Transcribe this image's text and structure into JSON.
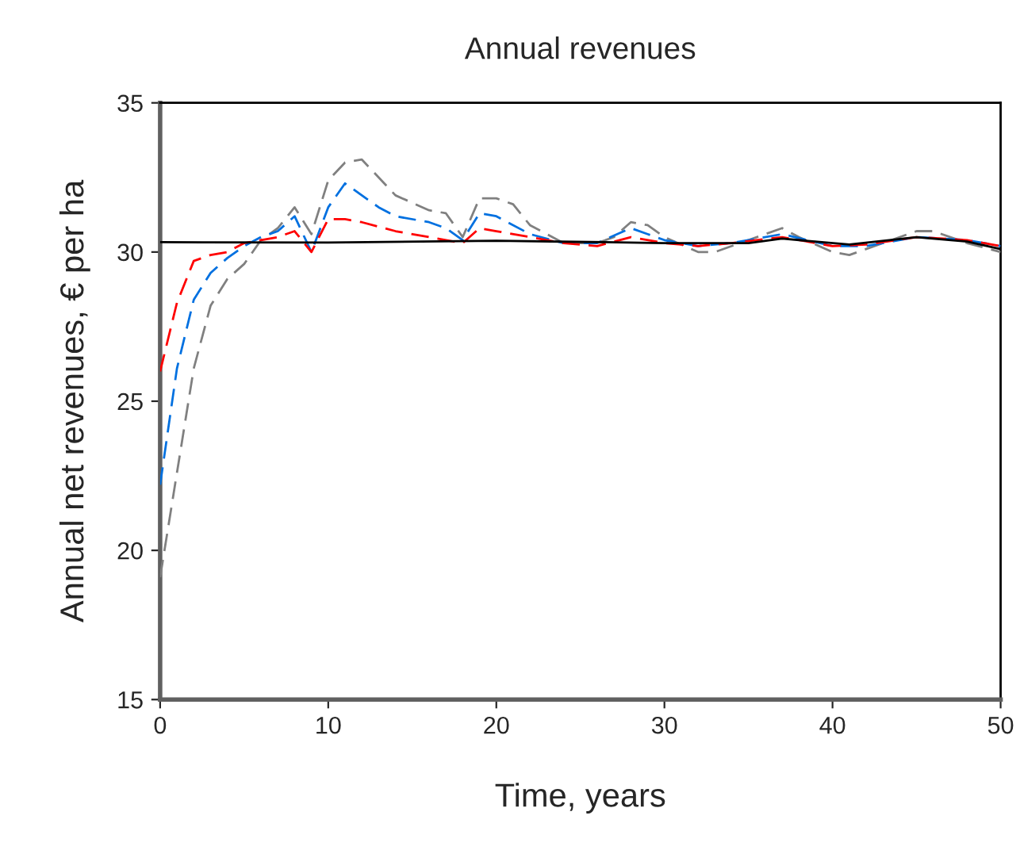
{
  "chart_data": {
    "type": "line",
    "title": "Annual revenues",
    "xlabel": "Time, years",
    "ylabel": "Annual net revenues, € per ha",
    "xlim": [
      0,
      50
    ],
    "xticks": [
      0,
      10,
      20,
      30,
      40,
      50
    ],
    "ylim": [
      15,
      35
    ],
    "yticks": [
      15,
      20,
      25,
      30,
      35
    ],
    "grid": false,
    "marker": "none",
    "series": [
      {
        "color": "#000000",
        "line_style": "solid",
        "x": [
          0,
          10,
          20,
          30,
          35,
          37,
          41,
          45,
          48,
          50
        ],
        "values": [
          30.33,
          30.32,
          30.38,
          30.3,
          30.3,
          30.45,
          30.25,
          30.5,
          30.35,
          30.1
        ]
      },
      {
        "color": "#ff0000",
        "line_style": "dashed",
        "x": [
          0,
          1,
          2,
          3,
          4,
          5,
          6,
          7,
          8,
          9,
          10,
          11,
          12,
          14,
          16,
          18,
          19,
          20,
          22,
          24,
          26,
          28,
          30,
          32,
          34,
          37,
          40,
          42,
          45,
          48,
          50
        ],
        "values": [
          26.0,
          28.3,
          29.7,
          29.9,
          30.0,
          30.3,
          30.4,
          30.5,
          30.7,
          30.0,
          31.1,
          31.1,
          31.0,
          30.7,
          30.5,
          30.3,
          30.8,
          30.7,
          30.5,
          30.3,
          30.2,
          30.5,
          30.3,
          30.2,
          30.3,
          30.5,
          30.2,
          30.25,
          30.5,
          30.4,
          30.2
        ]
      },
      {
        "color": "#0070e0",
        "line_style": "dashed",
        "x": [
          0,
          1,
          2,
          3,
          4,
          5,
          6,
          7,
          8,
          9,
          10,
          11,
          12,
          13,
          14,
          16,
          17,
          18,
          19,
          20,
          22,
          24,
          26,
          28,
          29,
          30,
          32,
          34,
          37,
          40,
          42,
          45,
          48,
          50
        ],
        "values": [
          22.2,
          26.1,
          28.4,
          29.3,
          29.8,
          30.2,
          30.5,
          30.7,
          31.2,
          30.0,
          31.5,
          32.3,
          31.9,
          31.5,
          31.2,
          31.0,
          30.8,
          30.4,
          31.3,
          31.2,
          30.6,
          30.3,
          30.3,
          30.8,
          30.6,
          30.4,
          30.2,
          30.3,
          30.6,
          30.2,
          30.2,
          30.5,
          30.4,
          30.2
        ]
      },
      {
        "color": "#808080",
        "line_style": "dashed",
        "x": [
          0,
          1,
          2,
          3,
          4,
          5,
          6,
          7,
          8,
          9,
          10,
          11,
          12,
          13,
          14,
          16,
          17,
          18,
          19,
          20,
          21,
          22,
          24,
          26,
          27,
          28,
          29,
          30,
          32,
          33,
          35,
          37,
          38,
          40,
          41,
          43,
          45,
          46,
          48,
          50
        ],
        "values": [
          19.1,
          22.6,
          26.1,
          28.2,
          29.1,
          29.6,
          30.4,
          30.8,
          31.5,
          30.6,
          32.4,
          33.0,
          33.1,
          32.5,
          31.9,
          31.4,
          31.3,
          30.5,
          31.8,
          31.8,
          31.6,
          30.9,
          30.3,
          30.3,
          30.5,
          31.0,
          30.9,
          30.5,
          30.0,
          30.0,
          30.4,
          30.8,
          30.5,
          30.0,
          29.9,
          30.3,
          30.7,
          30.7,
          30.3,
          30.0
        ]
      }
    ]
  }
}
